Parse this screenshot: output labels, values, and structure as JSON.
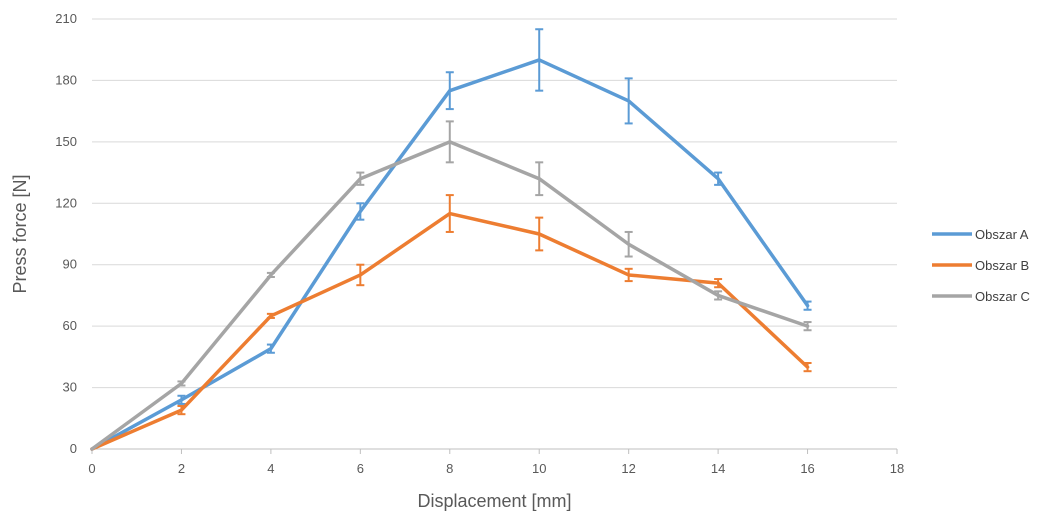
{
  "chart_data": {
    "type": "line",
    "title": "",
    "xlabel": "Displacement [mm]",
    "ylabel": "Press force [N]",
    "xlim": [
      0,
      18
    ],
    "ylim": [
      0,
      210
    ],
    "xticks": [
      0,
      2,
      4,
      6,
      8,
      10,
      12,
      14,
      16,
      18
    ],
    "yticks": [
      0,
      30,
      60,
      90,
      120,
      150,
      180,
      210
    ],
    "grid": "horizontal",
    "legend_position": "right",
    "x": [
      0,
      2,
      4,
      6,
      8,
      10,
      12,
      14,
      16
    ],
    "series": [
      {
        "name": "Obszar A",
        "color": "#5B9BD5",
        "values": [
          0,
          24,
          49,
          116,
          175,
          190,
          170,
          132,
          70
        ],
        "error": [
          0,
          2,
          2,
          4,
          9,
          15,
          11,
          3,
          2
        ]
      },
      {
        "name": "Obszar B",
        "color": "#ED7D31",
        "values": [
          0,
          19,
          65,
          85,
          115,
          105,
          85,
          81,
          40
        ],
        "error": [
          0,
          2,
          1,
          5,
          9,
          8,
          3,
          2,
          2
        ]
      },
      {
        "name": "Obszar C",
        "color": "#A5A5A5",
        "values": [
          0,
          32,
          85,
          132,
          150,
          132,
          100,
          75,
          60
        ],
        "error": [
          0,
          1,
          1,
          3,
          10,
          8,
          6,
          2,
          2
        ]
      }
    ]
  }
}
